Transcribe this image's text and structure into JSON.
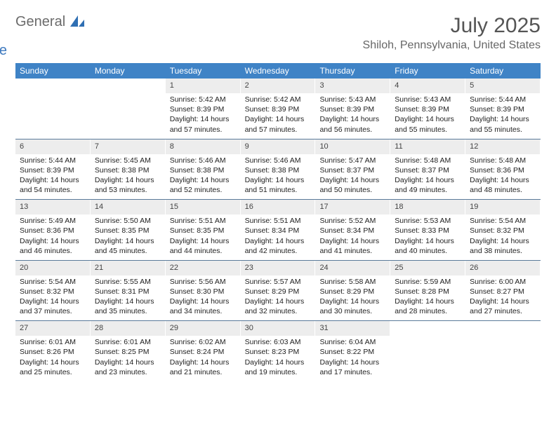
{
  "logo": {
    "general": "General",
    "blue": "Blue"
  },
  "title": "July 2025",
  "location": "Shiloh, Pennsylvania, United States",
  "colors": {
    "header_bg": "#3f83c6",
    "daynum_bg": "#ededed",
    "week_border": "#5a7a9a"
  },
  "day_names": [
    "Sunday",
    "Monday",
    "Tuesday",
    "Wednesday",
    "Thursday",
    "Friday",
    "Saturday"
  ],
  "weeks": [
    [
      {
        "n": "",
        "sr": "",
        "ss": "",
        "dl": ""
      },
      {
        "n": "",
        "sr": "",
        "ss": "",
        "dl": ""
      },
      {
        "n": "1",
        "sr": "5:42 AM",
        "ss": "8:39 PM",
        "dl": "14 hours and 57 minutes."
      },
      {
        "n": "2",
        "sr": "5:42 AM",
        "ss": "8:39 PM",
        "dl": "14 hours and 57 minutes."
      },
      {
        "n": "3",
        "sr": "5:43 AM",
        "ss": "8:39 PM",
        "dl": "14 hours and 56 minutes."
      },
      {
        "n": "4",
        "sr": "5:43 AM",
        "ss": "8:39 PM",
        "dl": "14 hours and 55 minutes."
      },
      {
        "n": "5",
        "sr": "5:44 AM",
        "ss": "8:39 PM",
        "dl": "14 hours and 55 minutes."
      }
    ],
    [
      {
        "n": "6",
        "sr": "5:44 AM",
        "ss": "8:39 PM",
        "dl": "14 hours and 54 minutes."
      },
      {
        "n": "7",
        "sr": "5:45 AM",
        "ss": "8:38 PM",
        "dl": "14 hours and 53 minutes."
      },
      {
        "n": "8",
        "sr": "5:46 AM",
        "ss": "8:38 PM",
        "dl": "14 hours and 52 minutes."
      },
      {
        "n": "9",
        "sr": "5:46 AM",
        "ss": "8:38 PM",
        "dl": "14 hours and 51 minutes."
      },
      {
        "n": "10",
        "sr": "5:47 AM",
        "ss": "8:37 PM",
        "dl": "14 hours and 50 minutes."
      },
      {
        "n": "11",
        "sr": "5:48 AM",
        "ss": "8:37 PM",
        "dl": "14 hours and 49 minutes."
      },
      {
        "n": "12",
        "sr": "5:48 AM",
        "ss": "8:36 PM",
        "dl": "14 hours and 48 minutes."
      }
    ],
    [
      {
        "n": "13",
        "sr": "5:49 AM",
        "ss": "8:36 PM",
        "dl": "14 hours and 46 minutes."
      },
      {
        "n": "14",
        "sr": "5:50 AM",
        "ss": "8:35 PM",
        "dl": "14 hours and 45 minutes."
      },
      {
        "n": "15",
        "sr": "5:51 AM",
        "ss": "8:35 PM",
        "dl": "14 hours and 44 minutes."
      },
      {
        "n": "16",
        "sr": "5:51 AM",
        "ss": "8:34 PM",
        "dl": "14 hours and 42 minutes."
      },
      {
        "n": "17",
        "sr": "5:52 AM",
        "ss": "8:34 PM",
        "dl": "14 hours and 41 minutes."
      },
      {
        "n": "18",
        "sr": "5:53 AM",
        "ss": "8:33 PM",
        "dl": "14 hours and 40 minutes."
      },
      {
        "n": "19",
        "sr": "5:54 AM",
        "ss": "8:32 PM",
        "dl": "14 hours and 38 minutes."
      }
    ],
    [
      {
        "n": "20",
        "sr": "5:54 AM",
        "ss": "8:32 PM",
        "dl": "14 hours and 37 minutes."
      },
      {
        "n": "21",
        "sr": "5:55 AM",
        "ss": "8:31 PM",
        "dl": "14 hours and 35 minutes."
      },
      {
        "n": "22",
        "sr": "5:56 AM",
        "ss": "8:30 PM",
        "dl": "14 hours and 34 minutes."
      },
      {
        "n": "23",
        "sr": "5:57 AM",
        "ss": "8:29 PM",
        "dl": "14 hours and 32 minutes."
      },
      {
        "n": "24",
        "sr": "5:58 AM",
        "ss": "8:29 PM",
        "dl": "14 hours and 30 minutes."
      },
      {
        "n": "25",
        "sr": "5:59 AM",
        "ss": "8:28 PM",
        "dl": "14 hours and 28 minutes."
      },
      {
        "n": "26",
        "sr": "6:00 AM",
        "ss": "8:27 PM",
        "dl": "14 hours and 27 minutes."
      }
    ],
    [
      {
        "n": "27",
        "sr": "6:01 AM",
        "ss": "8:26 PM",
        "dl": "14 hours and 25 minutes."
      },
      {
        "n": "28",
        "sr": "6:01 AM",
        "ss": "8:25 PM",
        "dl": "14 hours and 23 minutes."
      },
      {
        "n": "29",
        "sr": "6:02 AM",
        "ss": "8:24 PM",
        "dl": "14 hours and 21 minutes."
      },
      {
        "n": "30",
        "sr": "6:03 AM",
        "ss": "8:23 PM",
        "dl": "14 hours and 19 minutes."
      },
      {
        "n": "31",
        "sr": "6:04 AM",
        "ss": "8:22 PM",
        "dl": "14 hours and 17 minutes."
      },
      {
        "n": "",
        "sr": "",
        "ss": "",
        "dl": ""
      },
      {
        "n": "",
        "sr": "",
        "ss": "",
        "dl": ""
      }
    ]
  ],
  "labels": {
    "sunrise": "Sunrise:",
    "sunset": "Sunset:",
    "daylight": "Daylight:"
  }
}
